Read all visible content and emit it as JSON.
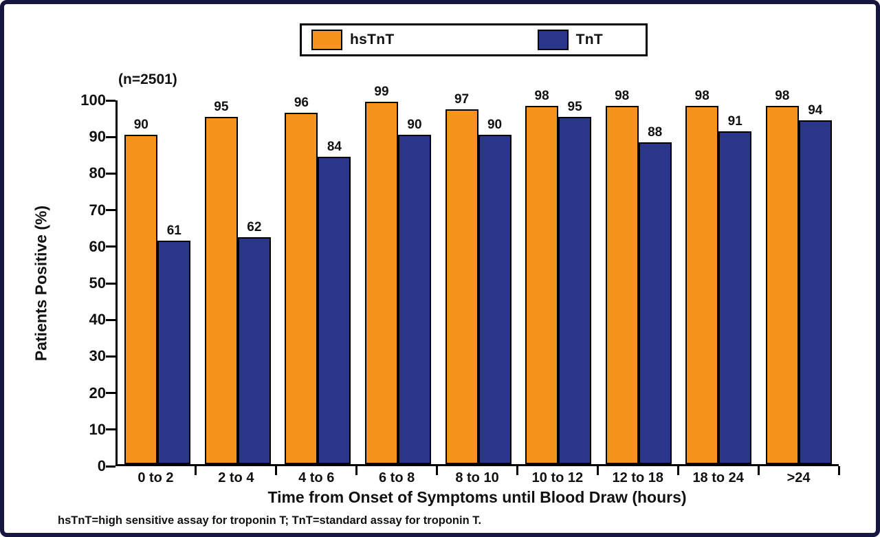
{
  "frame": {
    "background": "#ffffff",
    "border_color": "#16163e"
  },
  "chart_data": {
    "type": "bar",
    "title": "",
    "annotation": "(n=2501)",
    "categories": [
      "0 to 2",
      "2 to 4",
      "4 to 6",
      "6 to 8",
      "8 to 10",
      "10 to 12",
      "12 to 18",
      "18 to 24",
      ">24"
    ],
    "series": [
      {
        "name": "hsTnT",
        "color": "#F6921E",
        "values": [
          90,
          95,
          96,
          99,
          97,
          98,
          98,
          98,
          98
        ]
      },
      {
        "name": "TnT",
        "color": "#293689",
        "values": [
          61,
          62,
          84,
          90,
          90,
          95,
          88,
          91,
          94
        ]
      }
    ],
    "xlabel": "Time from Onset of Symptoms until Blood Draw (hours)",
    "ylabel": "Patients Positive (%)",
    "ylim": [
      0,
      100
    ],
    "ytick_step": 10,
    "grid": false,
    "legend_position": "top",
    "footnote": "hsTnT=high sensitive assay for troponin T; TnT=standard assay for troponin T."
  }
}
